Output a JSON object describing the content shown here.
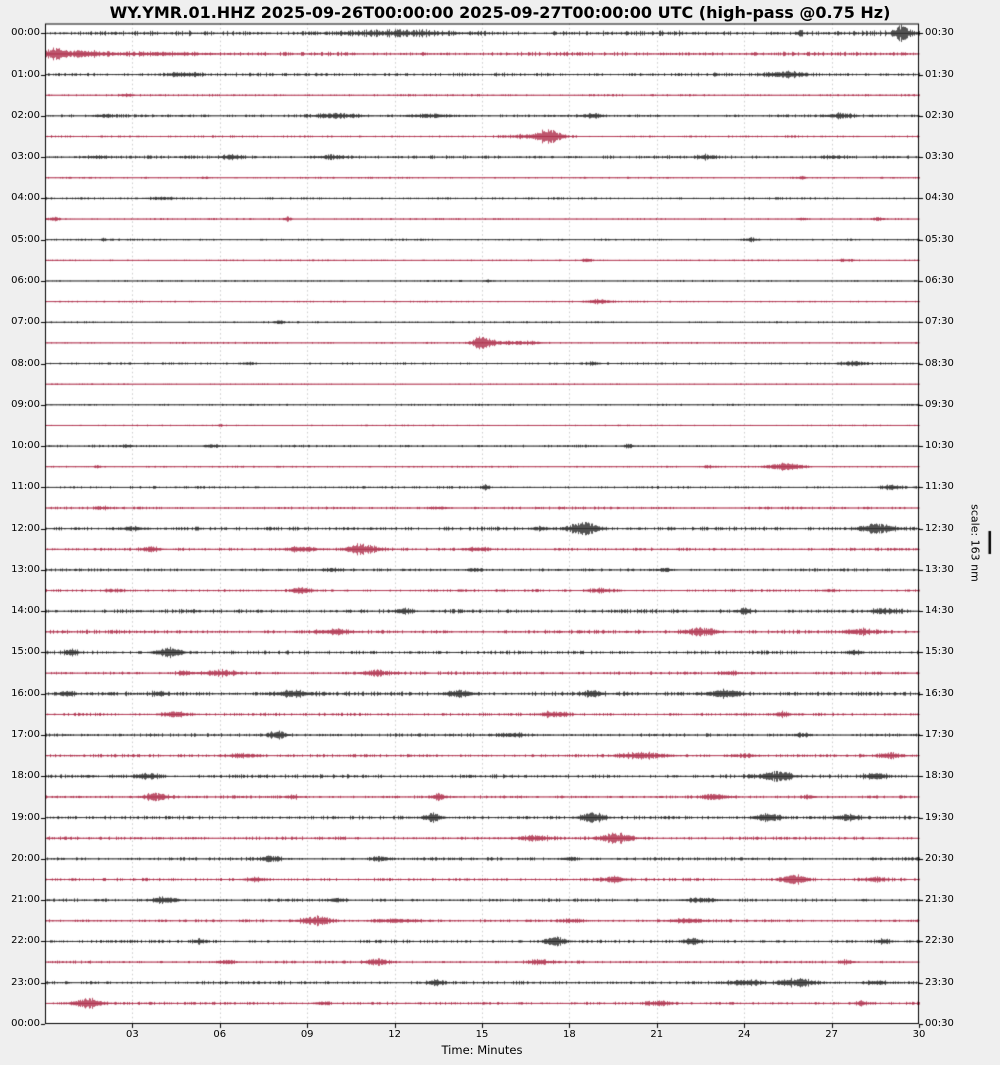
{
  "title": "WY.YMR.01.HHZ 2025-09-26T00:00:00 2025-09-27T00:00:00 UTC (high-pass @0.75 Hz)",
  "axes": {
    "x_title": "Time: Minutes",
    "x_tick_labels": [
      "03",
      "06",
      "09",
      "12",
      "15",
      "18",
      "21",
      "24",
      "27",
      "30"
    ],
    "x_tick_minutes": [
      3,
      6,
      9,
      12,
      15,
      18,
      21,
      24,
      27,
      30
    ],
    "x_range_minutes": [
      0,
      30
    ],
    "left_tick_labels": [
      "00:00",
      "01:00",
      "02:00",
      "03:00",
      "04:00",
      "05:00",
      "06:00",
      "07:00",
      "08:00",
      "09:00",
      "10:00",
      "11:00",
      "12:00",
      "13:00",
      "14:00",
      "15:00",
      "16:00",
      "17:00",
      "18:00",
      "19:00",
      "20:00",
      "21:00",
      "22:00",
      "23:00",
      "00:00"
    ],
    "right_tick_labels": [
      "00:30",
      "01:30",
      "02:30",
      "03:30",
      "04:30",
      "05:30",
      "06:30",
      "07:30",
      "08:30",
      "09:30",
      "10:30",
      "11:30",
      "12:30",
      "13:30",
      "14:30",
      "15:30",
      "16:30",
      "17:30",
      "18:30",
      "19:30",
      "20:30",
      "21:30",
      "22:30",
      "23:30",
      "00:30"
    ],
    "grid": "vertical-dashed"
  },
  "scale": {
    "label": "scale: 163 nm"
  },
  "colors": {
    "trace_black": "#1a1a1a",
    "trace_red": "#a9203e",
    "grid": "#bfbfbf",
    "border": "#000000",
    "plot_bg": "#ffffff",
    "page_bg": "#efefef"
  },
  "chart_data": {
    "type": "line",
    "variant": "helicorder-dayplot",
    "station": "WY.YMR.01.HHZ",
    "time_span": "2025-09-26T00:00:00 to 2025-09-27T00:00:00 UTC",
    "filter": "high-pass @0.75 Hz",
    "minutes_per_row": 30,
    "rows_count": 48,
    "legend_position": "none",
    "rows": [
      {
        "t": "00:00",
        "c": "black",
        "n": 1.5,
        "ev": [
          [
            12,
            1.6,
            3
          ],
          [
            25.9,
            3,
            0.15
          ],
          [
            29.4,
            7,
            0.45
          ]
        ]
      },
      {
        "t": "00:30",
        "c": "red",
        "n": 1.2,
        "ev": [
          [
            0.3,
            5,
            0.5
          ],
          [
            1.2,
            2.5,
            1.2
          ],
          [
            4,
            1.2,
            3
          ]
        ]
      },
      {
        "t": "01:00",
        "c": "black",
        "n": 1.1,
        "ev": [
          [
            4.7,
            2.2,
            0.8
          ],
          [
            25.4,
            2.8,
            1
          ]
        ]
      },
      {
        "t": "01:30",
        "c": "red",
        "n": 0.7,
        "ev": [
          [
            2.8,
            1.3,
            0.4
          ]
        ]
      },
      {
        "t": "02:00",
        "c": "black",
        "n": 0.9,
        "ev": [
          [
            2,
            1.6,
            0.5
          ],
          [
            10,
            2.2,
            1.2
          ],
          [
            13.2,
            2,
            1
          ],
          [
            18.8,
            1.6,
            0.6
          ],
          [
            27.3,
            2.2,
            0.7
          ]
        ]
      },
      {
        "t": "02:30",
        "c": "red",
        "n": 0.7,
        "ev": [
          [
            16.5,
            1.5,
            1.2
          ],
          [
            17.3,
            6.5,
            0.7
          ]
        ]
      },
      {
        "t": "03:00",
        "c": "black",
        "n": 1.0,
        "ev": [
          [
            1.8,
            1.5,
            0.5
          ],
          [
            6.4,
            1.8,
            0.6
          ],
          [
            9.8,
            1.6,
            0.8
          ],
          [
            22.7,
            1.8,
            0.5
          ],
          [
            27,
            1.4,
            0.5
          ]
        ]
      },
      {
        "t": "03:30",
        "c": "red",
        "n": 0.55,
        "ev": [
          [
            5.5,
            1.2,
            0.3
          ],
          [
            25.9,
            1.3,
            0.3
          ]
        ]
      },
      {
        "t": "04:00",
        "c": "black",
        "n": 0.7,
        "ev": [
          [
            4,
            1.5,
            0.8
          ]
        ]
      },
      {
        "t": "04:30",
        "c": "red",
        "n": 0.55,
        "ev": [
          [
            0.3,
            2,
            0.3
          ],
          [
            8.3,
            2.4,
            0.25
          ],
          [
            26,
            1.4,
            0.3
          ],
          [
            28.6,
            1.8,
            0.3
          ]
        ]
      },
      {
        "t": "05:00",
        "c": "black",
        "n": 0.6,
        "ev": [
          [
            2,
            1.2,
            0.2
          ],
          [
            24.2,
            2,
            0.4
          ]
        ]
      },
      {
        "t": "05:30",
        "c": "red",
        "n": 0.5,
        "ev": [
          [
            18.6,
            2,
            0.3
          ],
          [
            27.5,
            1.4,
            0.5
          ]
        ]
      },
      {
        "t": "06:00",
        "c": "black",
        "n": 0.55,
        "ev": [
          [
            15.2,
            1.2,
            0.2
          ]
        ]
      },
      {
        "t": "06:30",
        "c": "red",
        "n": 0.5,
        "ev": [
          [
            19,
            2,
            0.8
          ]
        ]
      },
      {
        "t": "07:00",
        "c": "black",
        "n": 0.6,
        "ev": [
          [
            8,
            1.2,
            0.3
          ]
        ]
      },
      {
        "t": "07:30",
        "c": "red",
        "n": 0.55,
        "ev": [
          [
            15,
            6.5,
            0.55
          ],
          [
            16.2,
            1.8,
            1.4
          ]
        ]
      },
      {
        "t": "08:00",
        "c": "black",
        "n": 0.7,
        "ev": [
          [
            7,
            1.3,
            0.4
          ],
          [
            18.8,
            1.4,
            0.4
          ],
          [
            27.7,
            2.2,
            0.7
          ]
        ]
      },
      {
        "t": "08:30",
        "c": "red",
        "n": 0.45,
        "ev": []
      },
      {
        "t": "09:00",
        "c": "black",
        "n": 0.6,
        "ev": []
      },
      {
        "t": "09:30",
        "c": "red",
        "n": 0.45,
        "ev": [
          [
            6,
            1,
            0.2
          ]
        ]
      },
      {
        "t": "10:00",
        "c": "black",
        "n": 0.75,
        "ev": [
          [
            2.8,
            1.6,
            0.3
          ],
          [
            5.7,
            1.8,
            0.4
          ],
          [
            20,
            1.5,
            0.3
          ]
        ]
      },
      {
        "t": "10:30",
        "c": "red",
        "n": 0.55,
        "ev": [
          [
            1.8,
            1.2,
            0.2
          ],
          [
            22.8,
            1.3,
            0.4
          ],
          [
            25.4,
            3.8,
            0.9
          ]
        ]
      },
      {
        "t": "11:00",
        "c": "black",
        "n": 0.75,
        "ev": [
          [
            15.1,
            2.8,
            0.2
          ],
          [
            29,
            1.8,
            0.6
          ]
        ]
      },
      {
        "t": "11:30",
        "c": "red",
        "n": 0.8,
        "ev": [
          [
            2,
            1.4,
            0.4
          ],
          [
            13.5,
            1.3,
            0.6
          ]
        ]
      },
      {
        "t": "12:00",
        "c": "black",
        "n": 1.1,
        "ev": [
          [
            3,
            1.8,
            0.7
          ],
          [
            17,
            1.8,
            0.5
          ],
          [
            18.5,
            6.5,
            0.8
          ],
          [
            28.5,
            4.5,
            1
          ]
        ]
      },
      {
        "t": "12:30",
        "c": "red",
        "n": 0.9,
        "ev": [
          [
            3.6,
            2.6,
            0.5
          ],
          [
            8.8,
            2.6,
            1
          ],
          [
            10.9,
            5.5,
            0.8
          ],
          [
            14.8,
            1.8,
            0.7
          ]
        ]
      },
      {
        "t": "13:00",
        "c": "black",
        "n": 0.9,
        "ev": [
          [
            9.9,
            1.6,
            0.5
          ],
          [
            14.7,
            1.8,
            0.4
          ],
          [
            21.3,
            1.8,
            0.4
          ]
        ]
      },
      {
        "t": "13:30",
        "c": "red",
        "n": 0.8,
        "ev": [
          [
            2.4,
            1.6,
            0.6
          ],
          [
            8.8,
            2.8,
            0.6
          ],
          [
            19.1,
            2,
            0.8
          ],
          [
            26.9,
            1.3,
            0.4
          ]
        ]
      },
      {
        "t": "14:00",
        "c": "black",
        "n": 1.2,
        "ev": [
          [
            12.3,
            2.6,
            0.4
          ],
          [
            24,
            2.2,
            0.4
          ],
          [
            28.8,
            2.6,
            0.7
          ]
        ]
      },
      {
        "t": "14:30",
        "c": "red",
        "n": 1.2,
        "ev": [
          [
            10,
            2.2,
            0.9
          ],
          [
            22.5,
            3.8,
            0.9
          ],
          [
            28,
            2.2,
            0.9
          ]
        ]
      },
      {
        "t": "15:00",
        "c": "black",
        "n": 1.1,
        "ev": [
          [
            0.9,
            3,
            0.4
          ],
          [
            4.2,
            4.5,
            0.7
          ],
          [
            27.8,
            2.2,
            0.4
          ]
        ]
      },
      {
        "t": "15:30",
        "c": "red",
        "n": 1.0,
        "ev": [
          [
            4.8,
            2.2,
            0.4
          ],
          [
            6,
            2.8,
            0.9
          ],
          [
            11.3,
            3.2,
            0.7
          ],
          [
            23.5,
            1.8,
            0.4
          ]
        ]
      },
      {
        "t": "16:00",
        "c": "black",
        "n": 1.3,
        "ev": [
          [
            0.7,
            2.8,
            0.4
          ],
          [
            3.9,
            2.2,
            0.4
          ],
          [
            8.5,
            2.8,
            0.9
          ],
          [
            14.2,
            3.2,
            0.7
          ],
          [
            18.8,
            2.8,
            0.5
          ],
          [
            23.3,
            3.8,
            0.9
          ]
        ]
      },
      {
        "t": "16:30",
        "c": "red",
        "n": 0.95,
        "ev": [
          [
            4.4,
            2.8,
            0.7
          ],
          [
            17.5,
            2.8,
            0.7
          ],
          [
            25.3,
            2.2,
            0.4
          ]
        ]
      },
      {
        "t": "17:00",
        "c": "black",
        "n": 1.0,
        "ev": [
          [
            8,
            4.2,
            0.45
          ],
          [
            16,
            1.8,
            0.7
          ],
          [
            26,
            1.8,
            0.4
          ]
        ]
      },
      {
        "t": "17:30",
        "c": "red",
        "n": 0.95,
        "ev": [
          [
            6.8,
            1.8,
            0.9
          ],
          [
            20.5,
            2.8,
            1.3
          ],
          [
            24,
            1.8,
            0.7
          ],
          [
            29,
            2.2,
            0.7
          ]
        ]
      },
      {
        "t": "18:00",
        "c": "black",
        "n": 1.2,
        "ev": [
          [
            3.5,
            2.8,
            0.7
          ],
          [
            25.1,
            4.2,
            0.9
          ],
          [
            28.5,
            2.8,
            0.7
          ]
        ]
      },
      {
        "t": "18:30",
        "c": "red",
        "n": 0.95,
        "ev": [
          [
            3.8,
            3.8,
            0.7
          ],
          [
            8.5,
            1.8,
            0.4
          ],
          [
            13.5,
            3.2,
            0.35
          ],
          [
            23,
            2.2,
            0.7
          ],
          [
            26.2,
            1.8,
            0.4
          ]
        ]
      },
      {
        "t": "19:00",
        "c": "black",
        "n": 1.1,
        "ev": [
          [
            13.3,
            3.8,
            0.5
          ],
          [
            18.8,
            5.2,
            0.6
          ],
          [
            24.8,
            4.2,
            0.7
          ],
          [
            27.5,
            2.8,
            0.7
          ]
        ]
      },
      {
        "t": "19:30",
        "c": "red",
        "n": 1.0,
        "ev": [
          [
            16.8,
            2.2,
            0.9
          ],
          [
            19.6,
            5.2,
            0.8
          ]
        ]
      },
      {
        "t": "20:00",
        "c": "black",
        "n": 1.0,
        "ev": [
          [
            7.7,
            2.2,
            0.6
          ],
          [
            11.5,
            2.2,
            0.5
          ],
          [
            18,
            1.8,
            0.4
          ]
        ]
      },
      {
        "t": "20:30",
        "c": "red",
        "n": 0.95,
        "ev": [
          [
            7.2,
            1.8,
            0.7
          ],
          [
            19.5,
            2.8,
            0.7
          ],
          [
            25.7,
            4.8,
            0.7
          ],
          [
            28.5,
            2.2,
            0.7
          ]
        ]
      },
      {
        "t": "21:00",
        "c": "black",
        "n": 0.95,
        "ev": [
          [
            4.1,
            3.2,
            0.7
          ],
          [
            10,
            1.8,
            0.4
          ],
          [
            22.5,
            2.2,
            0.9
          ]
        ]
      },
      {
        "t": "21:30",
        "c": "red",
        "n": 0.85,
        "ev": [
          [
            9.3,
            4.8,
            0.8
          ],
          [
            12,
            1.8,
            1.3
          ],
          [
            18,
            1.8,
            0.7
          ],
          [
            22,
            2.2,
            0.9
          ]
        ]
      },
      {
        "t": "22:00",
        "c": "black",
        "n": 0.95,
        "ev": [
          [
            5.3,
            2.2,
            0.4
          ],
          [
            17.5,
            4.8,
            0.6
          ],
          [
            22.2,
            3.2,
            0.5
          ],
          [
            28.8,
            2.2,
            0.4
          ]
        ]
      },
      {
        "t": "22:30",
        "c": "red",
        "n": 0.85,
        "ev": [
          [
            6.2,
            2.2,
            0.5
          ],
          [
            11.4,
            3.8,
            0.6
          ],
          [
            17,
            2.2,
            0.7
          ],
          [
            27.5,
            1.8,
            0.4
          ]
        ]
      },
      {
        "t": "23:00",
        "c": "black",
        "n": 1.0,
        "ev": [
          [
            13.4,
            2.8,
            0.4
          ],
          [
            24,
            2.2,
            0.9
          ],
          [
            25.8,
            3.8,
            0.9
          ],
          [
            28.5,
            1.8,
            0.7
          ]
        ]
      },
      {
        "t": "23:30",
        "c": "red",
        "n": 0.9,
        "ev": [
          [
            1.5,
            4.8,
            0.8
          ],
          [
            9.5,
            1.8,
            0.4
          ],
          [
            21,
            2.2,
            0.7
          ],
          [
            28,
            1.8,
            0.4
          ]
        ]
      }
    ]
  }
}
